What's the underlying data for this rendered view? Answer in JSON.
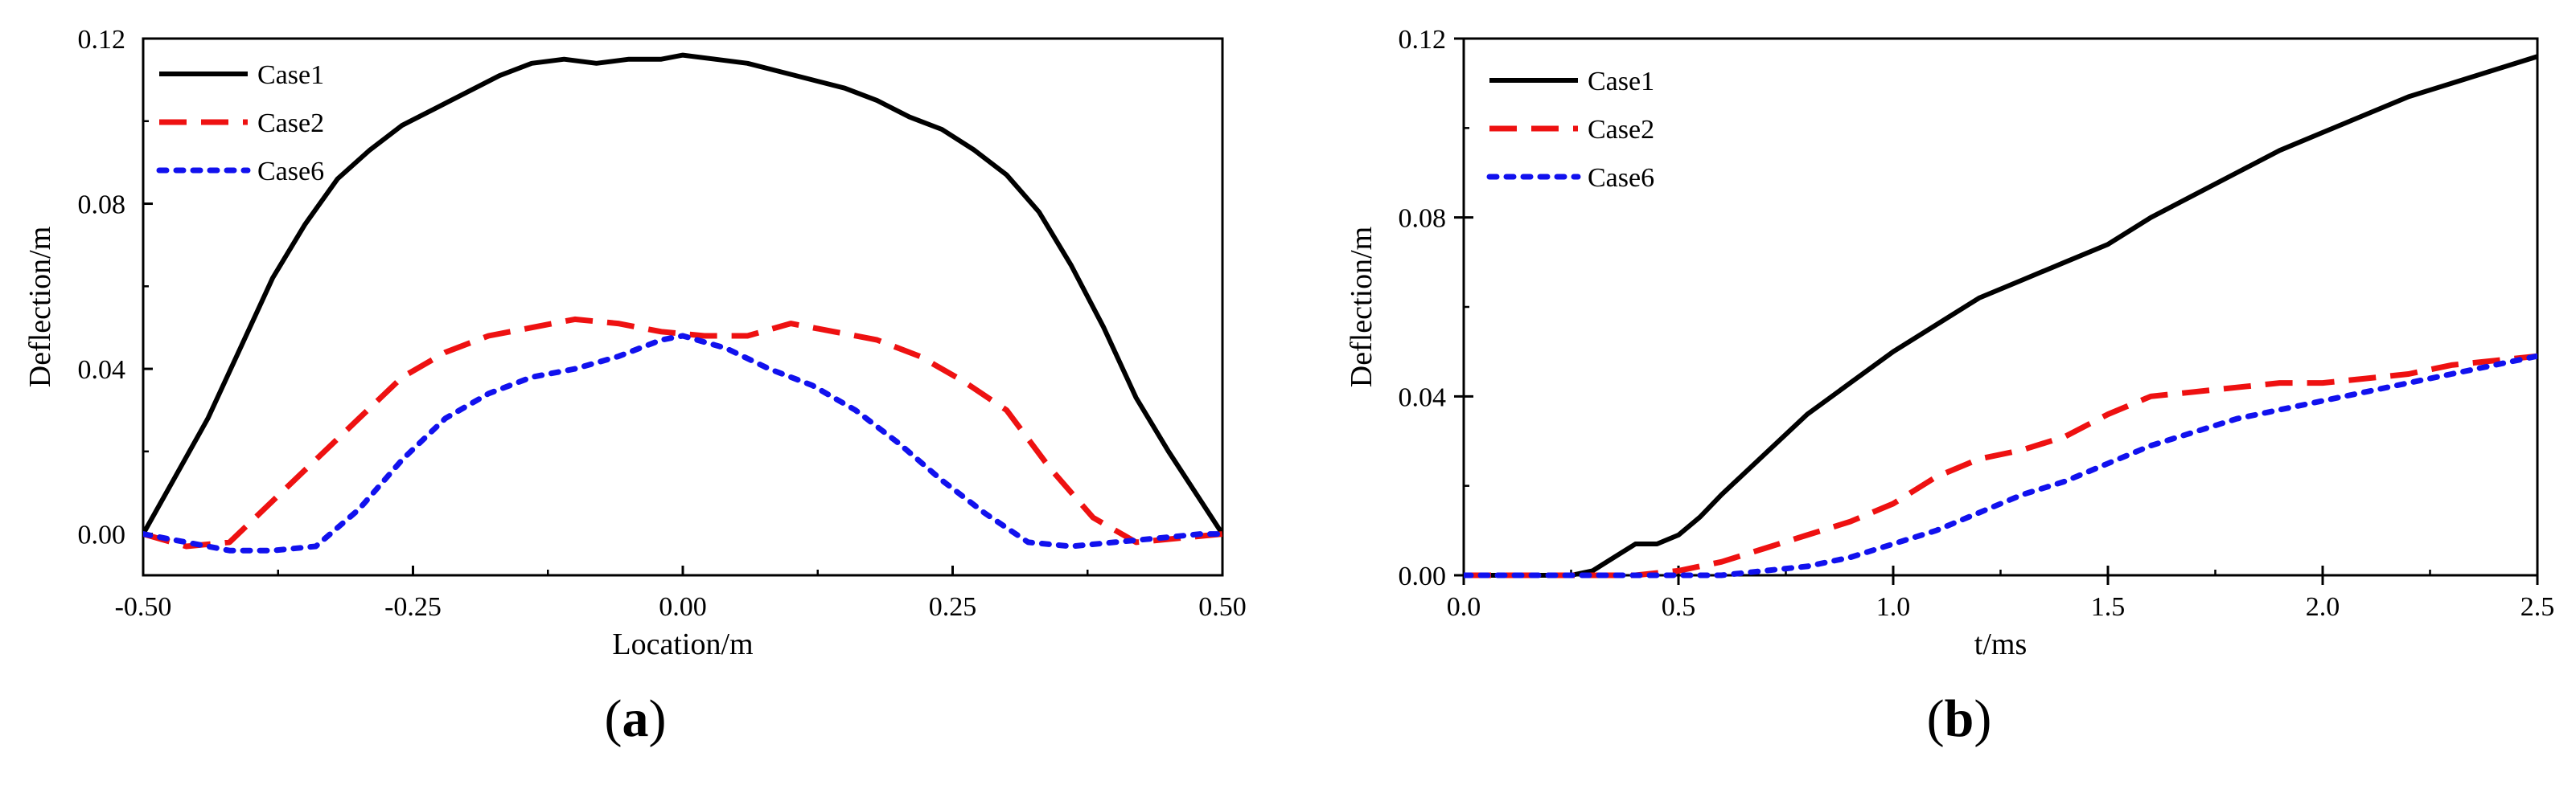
{
  "chart_data": [
    {
      "type": "line",
      "panel_label": "a",
      "xlabel": "Location/m",
      "ylabel": "Deflection/m",
      "xlim": [
        -0.5,
        0.5
      ],
      "ylim": [
        -0.01,
        0.12
      ],
      "xticks": [
        -0.5,
        -0.25,
        0.0,
        0.25,
        0.5
      ],
      "xtick_labels": [
        "-0.50",
        "-0.25",
        "0.00",
        "0.25",
        "0.50"
      ],
      "yticks": [
        0.0,
        0.04,
        0.08,
        0.12
      ],
      "ytick_labels": [
        "0.00",
        "0.04",
        "0.08",
        "0.12"
      ],
      "legend_position": "top-left",
      "series": [
        {
          "name": "Case1",
          "color": "#000000",
          "style": "solid",
          "x": [
            -0.5,
            -0.47,
            -0.44,
            -0.41,
            -0.38,
            -0.35,
            -0.32,
            -0.29,
            -0.26,
            -0.23,
            -0.2,
            -0.17,
            -0.14,
            -0.11,
            -0.08,
            -0.05,
            -0.02,
            0.0,
            0.03,
            0.06,
            0.09,
            0.12,
            0.15,
            0.18,
            0.21,
            0.24,
            0.27,
            0.3,
            0.33,
            0.36,
            0.39,
            0.42,
            0.45,
            0.48,
            0.5
          ],
          "values": [
            0.0,
            0.014,
            0.028,
            0.045,
            0.062,
            0.075,
            0.086,
            0.093,
            0.099,
            0.103,
            0.107,
            0.111,
            0.114,
            0.115,
            0.114,
            0.115,
            0.115,
            0.116,
            0.115,
            0.114,
            0.112,
            0.11,
            0.108,
            0.105,
            0.101,
            0.098,
            0.093,
            0.087,
            0.078,
            0.065,
            0.05,
            0.033,
            0.02,
            0.008,
            0.0
          ]
        },
        {
          "name": "Case2",
          "color": "#ee1111",
          "style": "dashed",
          "x": [
            -0.5,
            -0.46,
            -0.42,
            -0.38,
            -0.34,
            -0.3,
            -0.26,
            -0.22,
            -0.18,
            -0.14,
            -0.1,
            -0.06,
            -0.02,
            0.02,
            0.06,
            0.1,
            0.14,
            0.18,
            0.22,
            0.26,
            0.3,
            0.34,
            0.38,
            0.42,
            0.46,
            0.5
          ],
          "values": [
            0.0,
            -0.003,
            -0.002,
            0.008,
            0.018,
            0.028,
            0.038,
            0.044,
            0.048,
            0.05,
            0.052,
            0.051,
            0.049,
            0.048,
            0.048,
            0.051,
            0.049,
            0.047,
            0.043,
            0.037,
            0.03,
            0.016,
            0.004,
            -0.002,
            -0.001,
            0.0
          ]
        },
        {
          "name": "Case6",
          "color": "#1111ee",
          "style": "dotted",
          "x": [
            -0.5,
            -0.46,
            -0.42,
            -0.38,
            -0.34,
            -0.3,
            -0.26,
            -0.22,
            -0.18,
            -0.14,
            -0.1,
            -0.06,
            -0.02,
            0.0,
            0.04,
            0.08,
            0.12,
            0.16,
            0.2,
            0.24,
            0.28,
            0.32,
            0.36,
            0.4,
            0.44,
            0.48,
            0.5
          ],
          "values": [
            0.0,
            -0.002,
            -0.004,
            -0.004,
            -0.003,
            0.006,
            0.018,
            0.028,
            0.034,
            0.038,
            0.04,
            0.043,
            0.047,
            0.048,
            0.045,
            0.04,
            0.036,
            0.03,
            0.022,
            0.013,
            0.005,
            -0.002,
            -0.003,
            -0.002,
            -0.001,
            0.0,
            0.0
          ]
        }
      ]
    },
    {
      "type": "line",
      "panel_label": "b",
      "xlabel": "t/ms",
      "ylabel": "Deflection/m",
      "xlim": [
        0.0,
        2.5
      ],
      "ylim": [
        0.0,
        0.12
      ],
      "xticks": [
        0.0,
        0.5,
        1.0,
        1.5,
        2.0,
        2.5
      ],
      "xtick_labels": [
        "0.0",
        "0.5",
        "1.0",
        "1.5",
        "2.0",
        "2.5"
      ],
      "yticks": [
        0.0,
        0.04,
        0.08,
        0.12
      ],
      "ytick_labels": [
        "0.00",
        "0.04",
        "0.08",
        "0.12"
      ],
      "legend_position": "top-left",
      "series": [
        {
          "name": "Case1",
          "color": "#000000",
          "style": "solid",
          "x": [
            0.0,
            0.25,
            0.3,
            0.35,
            0.4,
            0.45,
            0.5,
            0.55,
            0.6,
            0.7,
            0.8,
            0.9,
            1.0,
            1.1,
            1.2,
            1.3,
            1.4,
            1.5,
            1.6,
            1.7,
            1.8,
            1.9,
            2.0,
            2.1,
            2.2,
            2.3,
            2.4,
            2.5
          ],
          "values": [
            0.0,
            0.0,
            0.001,
            0.004,
            0.007,
            0.007,
            0.009,
            0.013,
            0.018,
            0.027,
            0.036,
            0.043,
            0.05,
            0.056,
            0.062,
            0.066,
            0.07,
            0.074,
            0.08,
            0.085,
            0.09,
            0.095,
            0.099,
            0.103,
            0.107,
            0.11,
            0.113,
            0.116
          ]
        },
        {
          "name": "Case2",
          "color": "#ee1111",
          "style": "dashed",
          "x": [
            0.0,
            0.4,
            0.5,
            0.6,
            0.7,
            0.8,
            0.9,
            1.0,
            1.1,
            1.2,
            1.3,
            1.4,
            1.5,
            1.6,
            1.7,
            1.8,
            1.9,
            2.0,
            2.1,
            2.2,
            2.3,
            2.4,
            2.5
          ],
          "values": [
            0.0,
            0.0,
            0.001,
            0.003,
            0.006,
            0.009,
            0.012,
            0.016,
            0.022,
            0.026,
            0.028,
            0.031,
            0.036,
            0.04,
            0.041,
            0.042,
            0.043,
            0.043,
            0.044,
            0.045,
            0.047,
            0.048,
            0.049
          ]
        },
        {
          "name": "Case6",
          "color": "#1111ee",
          "style": "dotted",
          "x": [
            0.0,
            0.6,
            0.7,
            0.8,
            0.9,
            1.0,
            1.1,
            1.2,
            1.3,
            1.4,
            1.5,
            1.6,
            1.7,
            1.8,
            1.9,
            2.0,
            2.1,
            2.2,
            2.3,
            2.4,
            2.5
          ],
          "values": [
            0.0,
            0.0,
            0.001,
            0.002,
            0.004,
            0.007,
            0.01,
            0.014,
            0.018,
            0.021,
            0.025,
            0.029,
            0.032,
            0.035,
            0.037,
            0.039,
            0.041,
            0.043,
            0.045,
            0.047,
            0.049
          ]
        }
      ]
    }
  ]
}
